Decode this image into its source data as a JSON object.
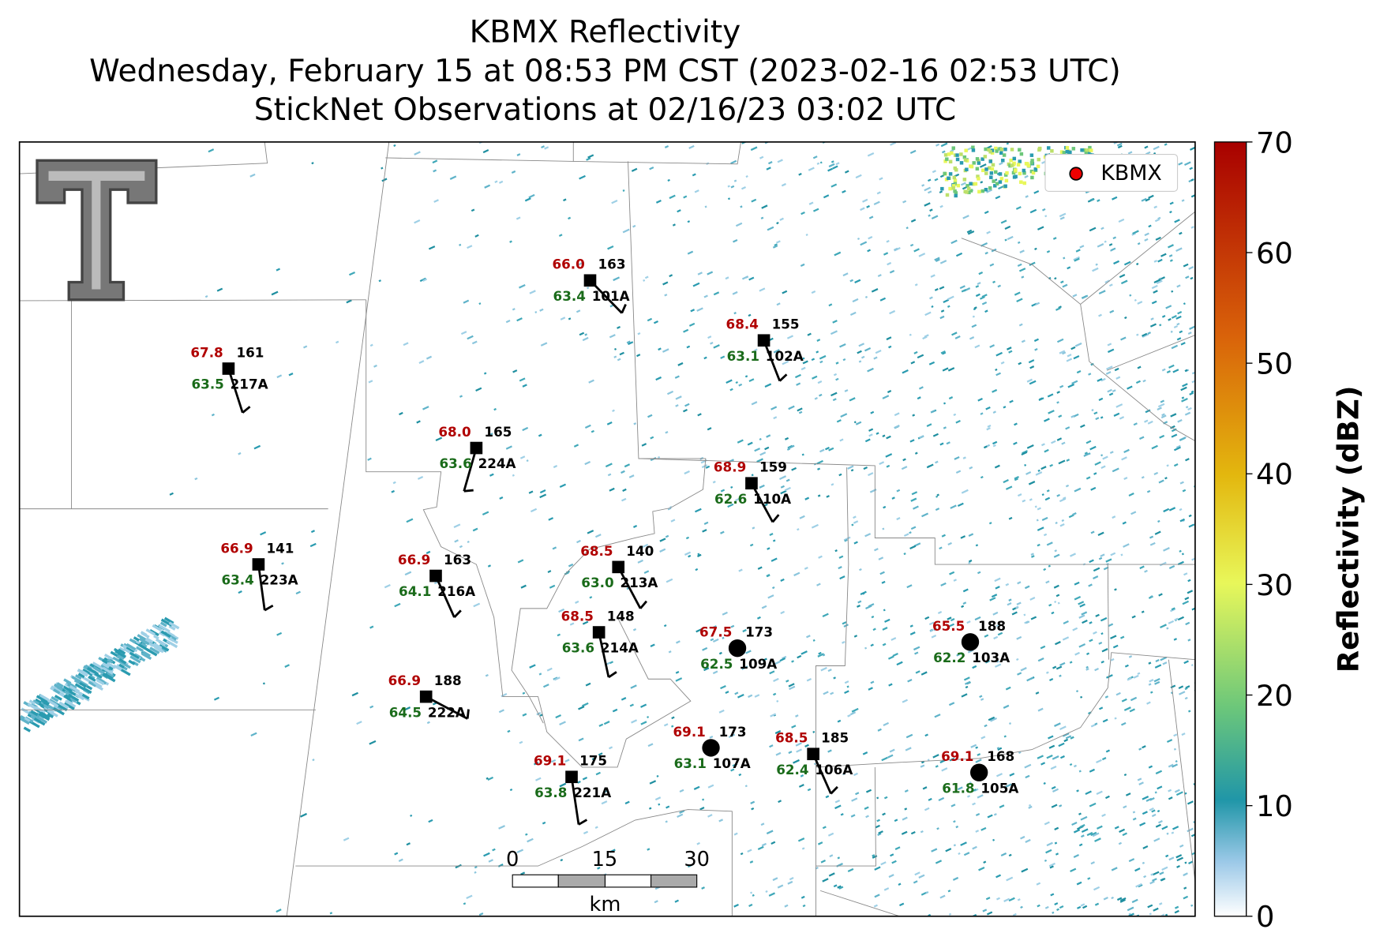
{
  "title": [
    "KBMX Reflectivity",
    "Wednesday, February 15 at 08:53 PM CST (2023-02-16 02:53 UTC)",
    "StickNet Observations at 02/16/23 03:02 UTC"
  ],
  "legend": {
    "label": "KBMX"
  },
  "colorbar": {
    "label": "Reflectivity (dBZ)",
    "clim": [
      0,
      70
    ],
    "ticks": [
      0,
      10,
      20,
      30,
      40,
      50,
      60,
      70
    ]
  },
  "scale_bar": {
    "ticks": [
      0,
      15,
      30
    ],
    "unit": "km"
  },
  "stations": [
    {
      "id": "101A",
      "temperature": "66.0",
      "dewpoint": "63.4",
      "value": 163
    },
    {
      "id": "102A",
      "temperature": "68.4",
      "dewpoint": "63.1",
      "value": 155
    },
    {
      "id": "217A",
      "temperature": "67.8",
      "dewpoint": "63.5",
      "value": 161
    },
    {
      "id": "224A",
      "temperature": "68.0",
      "dewpoint": "63.6",
      "value": 165
    },
    {
      "id": "110A",
      "temperature": "68.9",
      "dewpoint": "62.6",
      "value": 159
    },
    {
      "id": "223A",
      "temperature": "66.9",
      "dewpoint": "63.4",
      "value": 141
    },
    {
      "id": "216A",
      "temperature": "66.9",
      "dewpoint": "64.1",
      "value": 163
    },
    {
      "id": "213A",
      "temperature": "68.5",
      "dewpoint": "63.0",
      "value": 140
    },
    {
      "id": "214A",
      "temperature": "68.5",
      "dewpoint": "63.6",
      "value": 148
    },
    {
      "id": "109A",
      "temperature": "67.5",
      "dewpoint": "62.5",
      "value": 173
    },
    {
      "id": "103A",
      "temperature": "65.5",
      "dewpoint": "62.2",
      "value": 188
    },
    {
      "id": "222A",
      "temperature": "66.9",
      "dewpoint": "64.5",
      "value": 188
    },
    {
      "id": "107A",
      "temperature": "69.1",
      "dewpoint": "63.1",
      "value": 173
    },
    {
      "id": "106A",
      "temperature": "68.5",
      "dewpoint": "62.4",
      "value": 185
    },
    {
      "id": "105A",
      "temperature": "69.1",
      "dewpoint": "61.8",
      "value": 168
    },
    {
      "id": "221A",
      "temperature": "69.1",
      "dewpoint": "63.8",
      "value": 175
    }
  ]
}
